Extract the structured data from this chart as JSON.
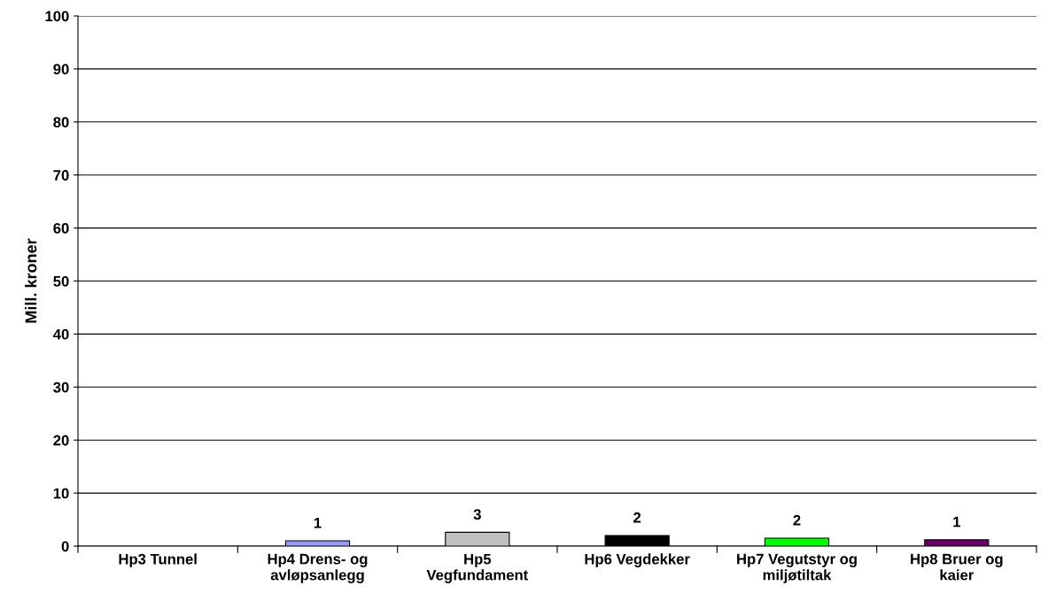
{
  "chart_data": {
    "type": "bar",
    "ylabel": "Mill. kroner",
    "categories": [
      "Hp3 Tunnel",
      "Hp4 Drens- og\navløpsanlegg",
      "Hp5\nVegfundament",
      "Hp6 Vegdekker",
      "Hp7 Vegutstyr og\nmiljøtiltak",
      "Hp8 Bruer og\nkaier"
    ],
    "values": [
      null,
      1.0,
      2.6,
      2.0,
      1.5,
      1.2
    ],
    "colors": [
      null,
      "#9999ff",
      "#c0c0c0",
      "#000000",
      "#00ff00",
      "#660066"
    ],
    "value_labels": [
      null,
      "1",
      "3",
      "2",
      "2",
      "1"
    ],
    "ylim": [
      0,
      100
    ],
    "yticks": [
      0,
      10,
      20,
      30,
      40,
      50,
      60,
      70,
      80,
      90,
      100
    ],
    "grid": "y"
  }
}
